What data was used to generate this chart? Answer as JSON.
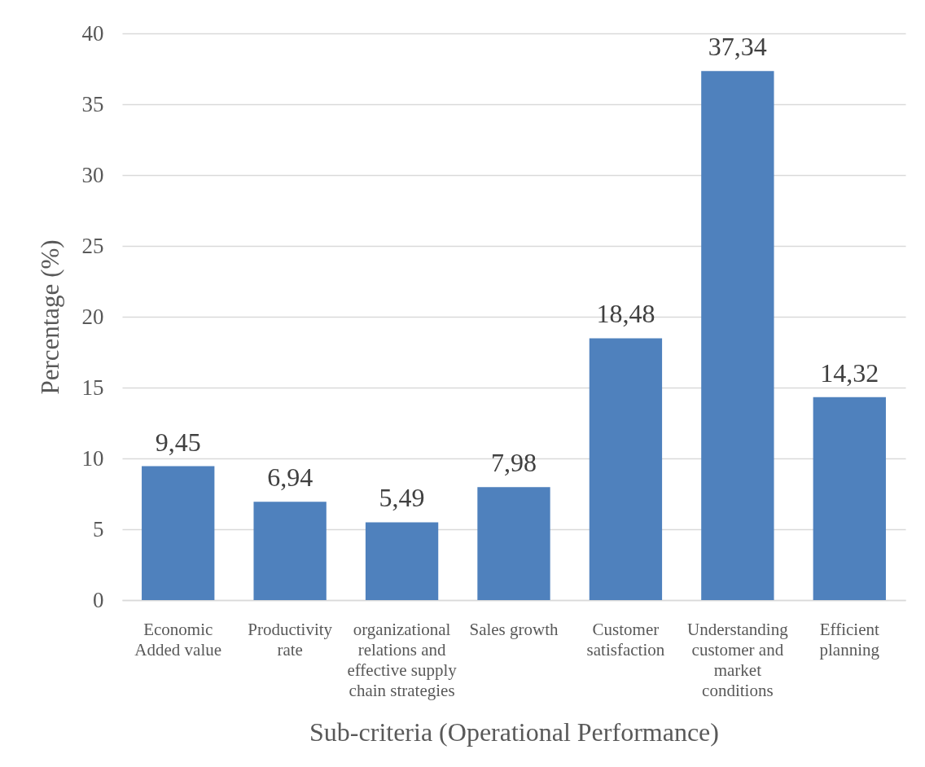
{
  "chart_data": {
    "type": "bar",
    "xlabel": "Sub-criteria (Operational Performance)",
    "ylabel": "Percentage (%)",
    "categories": [
      "Economic Added value",
      "Productivity rate",
      "organizational relations and effective supply chain strategies",
      "Sales growth",
      "Customer satisfaction",
      "Understanding customer and market conditions",
      "Efficient planning"
    ],
    "values": [
      9.45,
      6.94,
      5.49,
      7.98,
      18.48,
      37.34,
      14.32
    ],
    "value_labels": [
      "9,45",
      "6,94",
      "5,49",
      "7,98",
      "18,48",
      "37,34",
      "14,32"
    ],
    "color": "#4f81bd",
    "ylim": [
      0,
      40
    ],
    "yticks": [
      0,
      5,
      10,
      15,
      20,
      25,
      30,
      35,
      40
    ],
    "grid": "y"
  }
}
